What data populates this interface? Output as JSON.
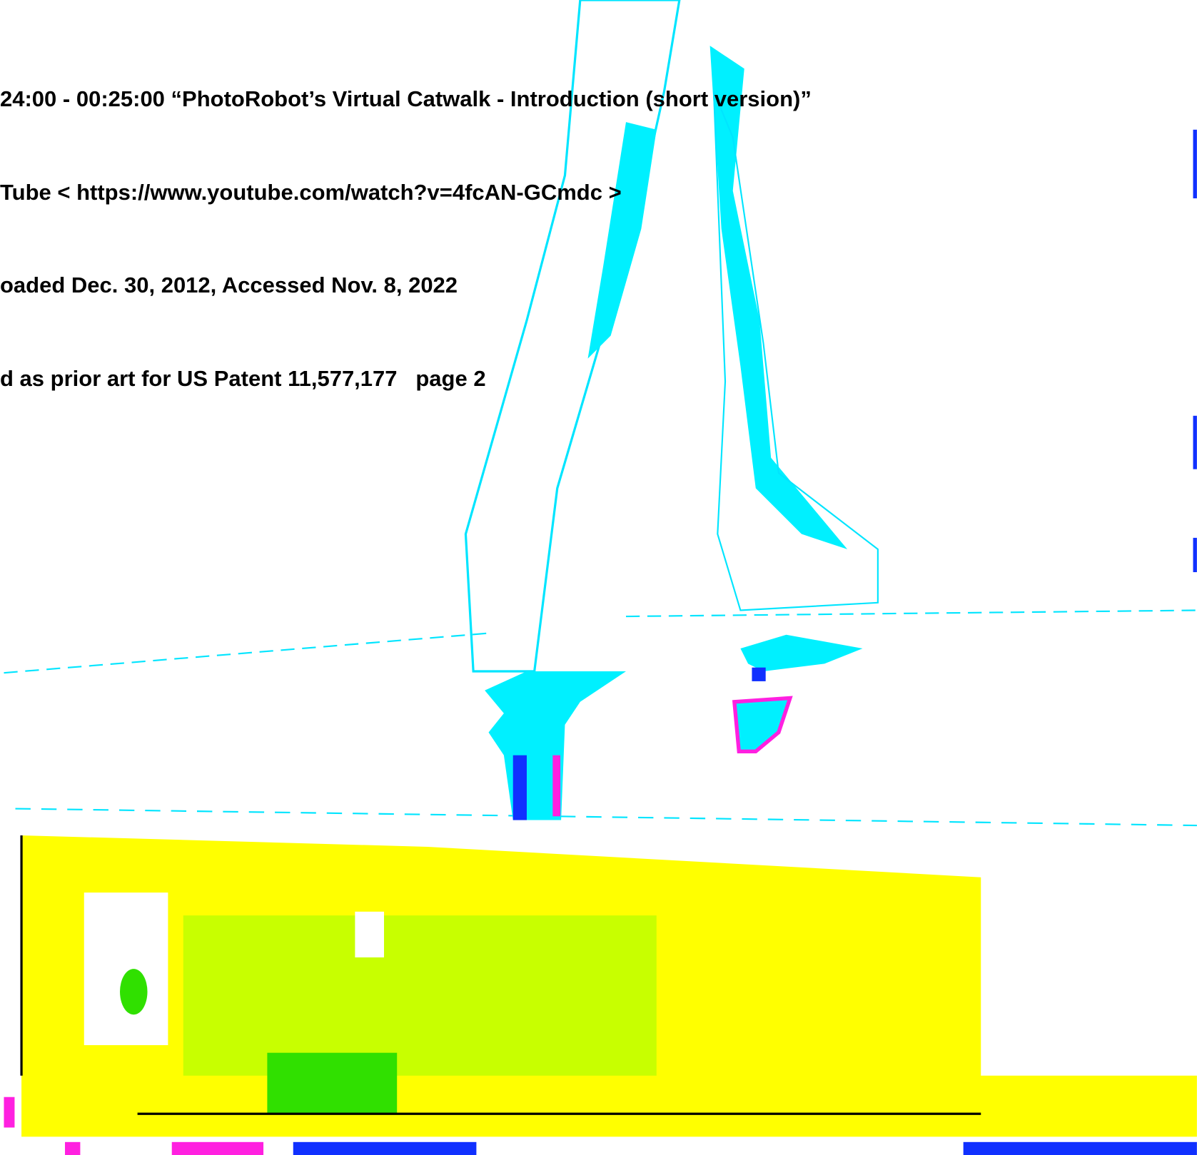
{
  "caption": {
    "lines": [
      "24:00 - 00:25:00 “PhotoRobot’s Virtual Catwalk - Introduction (short version)”",
      "Tube < https://www.youtube.com/watch?v=4fcAN-GCmdc >",
      "oaded Dec. 30, 2012, Accessed Nov. 8, 2022",
      "d as prior art for US Patent 11,577,177   page 2"
    ]
  }
}
